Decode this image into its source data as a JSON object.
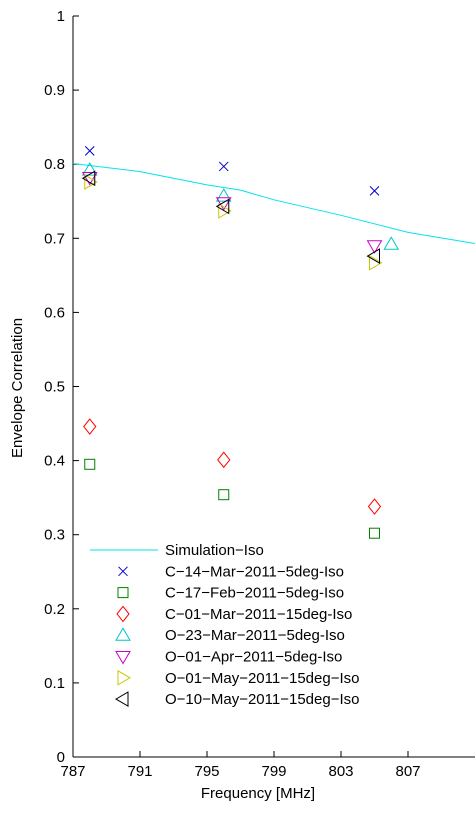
{
  "chart_data": {
    "type": "scatter",
    "title": "",
    "xlabel": "Frequency [MHz]",
    "ylabel": "Envelope Correlation",
    "xlim": [
      787,
      811
    ],
    "ylim": [
      0,
      1
    ],
    "xticks": [
      787,
      791,
      795,
      799,
      803,
      807
    ],
    "yticks": [
      0,
      0.1,
      0.2,
      0.3,
      0.4,
      0.5,
      0.6,
      0.7,
      0.8,
      0.9,
      1
    ],
    "legend_position": "bottom-left",
    "series": [
      {
        "name": "Simulation−Iso",
        "kind": "line",
        "color": "#00e5ee",
        "points": [
          [
            787,
            0.801
          ],
          [
            791,
            0.79
          ],
          [
            795,
            0.772
          ],
          [
            797,
            0.765
          ],
          [
            799,
            0.752
          ],
          [
            803,
            0.731
          ],
          [
            807,
            0.708
          ],
          [
            811,
            0.693
          ]
        ]
      },
      {
        "name": "C−14−Mar−2011−5deg-Iso",
        "marker": "x",
        "color": "#0000cc",
        "points": [
          [
            788,
            0.818
          ],
          [
            796,
            0.797
          ],
          [
            805,
            0.764
          ]
        ]
      },
      {
        "name": "C−17−Feb−2011−5deg-Iso",
        "marker": "square",
        "color": "#008000",
        "points": [
          [
            788,
            0.395
          ],
          [
            796,
            0.354
          ],
          [
            805,
            0.302
          ]
        ]
      },
      {
        "name": "C−01−Mar−2011−15deg-Iso",
        "marker": "diamond",
        "color": "#ff0000",
        "points": [
          [
            788,
            0.446
          ],
          [
            796,
            0.401
          ],
          [
            805,
            0.338
          ]
        ]
      },
      {
        "name": "O−23−Mar−2011−5deg-Iso",
        "marker": "triangle-up",
        "color": "#00c8c8",
        "points": [
          [
            788,
            0.792
          ],
          [
            796,
            0.757
          ],
          [
            806,
            0.692
          ]
        ]
      },
      {
        "name": "O−01−Apr−2011−5deg-Iso",
        "marker": "triangle-down",
        "color": "#cc00cc",
        "points": [
          [
            788,
            0.782
          ],
          [
            796,
            0.748
          ],
          [
            805,
            0.69
          ]
        ]
      },
      {
        "name": "O−01−May−2011−15deg−Iso",
        "marker": "triangle-right",
        "color": "#c8c800",
        "points": [
          [
            788,
            0.776
          ],
          [
            796,
            0.737
          ],
          [
            805,
            0.667
          ]
        ]
      },
      {
        "name": "O−10−May−2011−15deg−Iso",
        "marker": "triangle-left",
        "color": "#000000",
        "points": [
          [
            788,
            0.781
          ],
          [
            796,
            0.743
          ],
          [
            805,
            0.676
          ]
        ]
      }
    ]
  }
}
